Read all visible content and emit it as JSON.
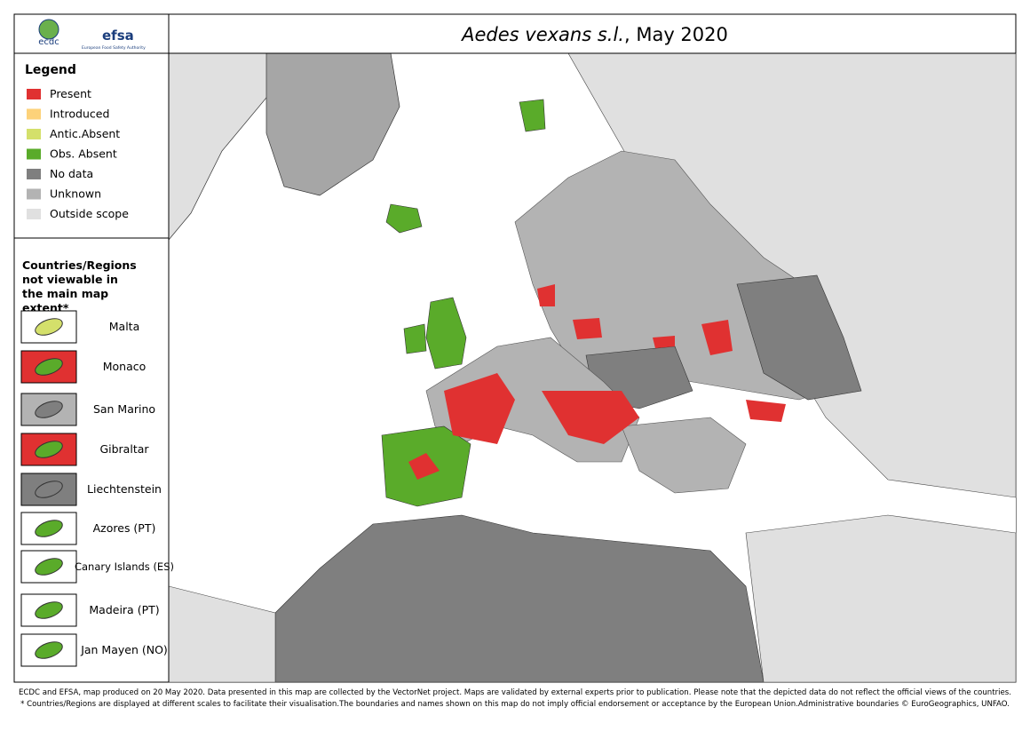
{
  "logos": {
    "ecdc": "ecdc",
    "efsa": "efsa",
    "efsa_sub": "European Food Safety Authority"
  },
  "title": {
    "species": "Aedes vexans s.l.",
    "date": ", May 2020"
  },
  "legend": {
    "title": "Legend",
    "items": [
      {
        "label": "Present",
        "color": "#e03131"
      },
      {
        "label": "Introduced",
        "color": "#fdd27a"
      },
      {
        "label": "Antic.Absent",
        "color": "#d4e06b"
      },
      {
        "label": "Obs. Absent",
        "color": "#5aab2a"
      },
      {
        "label": "No data",
        "color": "#7f7f7f"
      },
      {
        "label": "Unknown",
        "color": "#b3b3b3"
      },
      {
        "label": "Outside scope",
        "color": "#e0e0e0"
      }
    ]
  },
  "regions": {
    "title": "Countries/Regions not viewable in the main map extent*",
    "items": [
      "Malta",
      "Monaco",
      "San Marino",
      "Gibraltar",
      "Liechtenstein",
      "Azores (PT)",
      "Canary Islands (ES)",
      "Madeira (PT)",
      "Jan Mayen (NO)"
    ]
  },
  "footer": [
    "ECDC and EFSA, map produced on 20 May 2020. Data presented in this map are collected by the VectorNet project. Maps are validated by external experts prior to publication. Please note that the depicted data do not reflect the official views of the countries.",
    "* Countries/Regions are displayed at different scales to facilitate their visualisation.The boundaries and names shown on this map do not imply official endorsement or acceptance by the European Union.Administrative boundaries © EuroGeographics, UNFAO."
  ]
}
